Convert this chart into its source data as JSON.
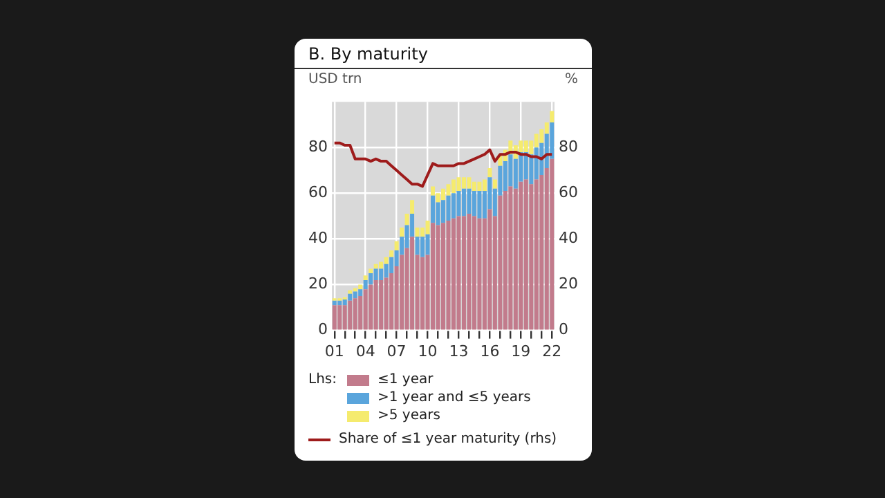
{
  "chart_data": {
    "type": "bar",
    "title": "B. By maturity",
    "ylabel": "USD trn",
    "y2label": "%",
    "legend_title": "Lhs:",
    "categories": [
      "01",
      null,
      null,
      null,
      null,
      null,
      "04",
      null,
      null,
      null,
      null,
      null,
      "07",
      null,
      null,
      null,
      null,
      null,
      "10",
      null,
      null,
      null,
      null,
      null,
      "13",
      null,
      null,
      null,
      null,
      null,
      "16",
      null,
      null,
      null,
      null,
      null,
      "19",
      null,
      null,
      null,
      null,
      null,
      "22"
    ],
    "series": [
      {
        "name": "≤1 year",
        "color": "#c27b8c",
        "values": [
          11,
          11,
          11,
          13,
          14,
          15,
          18,
          20,
          22,
          22,
          23,
          25,
          28,
          33,
          36,
          41,
          33,
          32,
          33,
          47,
          46,
          47,
          48,
          49,
          50,
          50,
          51,
          50,
          49,
          49,
          53,
          50,
          59,
          61,
          63,
          62,
          65,
          66,
          64,
          66,
          68,
          71,
          75
        ]
      },
      {
        "name": ">1 year and ≤5 years",
        "color": "#5aa5dc",
        "values": [
          2,
          2,
          2.5,
          3,
          3,
          3,
          4,
          5,
          5,
          5,
          6,
          7,
          7,
          8,
          10,
          10,
          8,
          9,
          9,
          12,
          10,
          10,
          11,
          11,
          11,
          12,
          11,
          11,
          12,
          12,
          14,
          12,
          13,
          13,
          14,
          13,
          13,
          12,
          13,
          14,
          14,
          15,
          16
        ]
      },
      {
        "name": ">5 years",
        "color": "#f5eb6e",
        "values": [
          1,
          1,
          1,
          1.5,
          1.5,
          2,
          2,
          2,
          2,
          3,
          3,
          3,
          4,
          4,
          5,
          6,
          4,
          4,
          6,
          4,
          4,
          5,
          5,
          6,
          6,
          5,
          5,
          4,
          4,
          5,
          4,
          4,
          5,
          5,
          6,
          6,
          5,
          5,
          6,
          6,
          6,
          5,
          5
        ]
      },
      {
        "name": "Share of ≤1 year maturity (rhs)",
        "type": "line",
        "axis": "y2",
        "color": "#9e1b1b",
        "values": [
          82,
          82,
          81,
          81,
          75,
          75,
          75,
          74,
          75,
          74,
          74,
          72,
          70,
          68,
          66,
          64,
          64,
          63,
          68,
          73,
          72,
          72,
          72,
          72,
          73,
          73,
          74,
          75,
          76,
          77,
          79,
          74,
          77,
          77,
          78,
          78,
          77,
          77,
          76,
          76,
          75,
          77,
          77
        ]
      }
    ],
    "stacked": true,
    "ylim": [
      0,
      100
    ],
    "yticks": [
      0,
      20,
      40,
      60,
      80
    ],
    "y2lim": [
      0,
      100
    ],
    "y2ticks": [
      0,
      20,
      40,
      60,
      80
    ],
    "grid": true,
    "legend": "bottom",
    "marker": "none"
  }
}
